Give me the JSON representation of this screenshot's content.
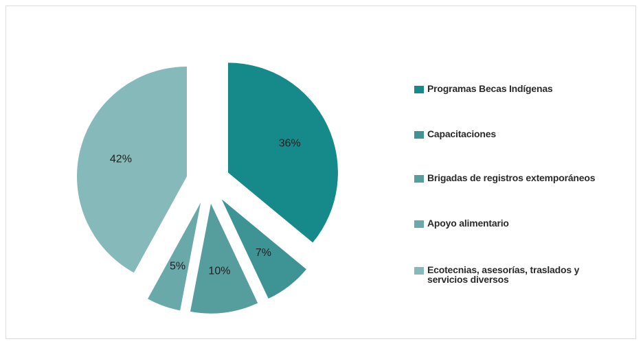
{
  "chart_data": {
    "type": "pie",
    "categories": [
      "Programas Becas Indígenas",
      "Capacitaciones",
      "Brigadas de registros extemporáneos",
      "Apoyo alimentario",
      "Ecotecnias, asesorías, traslados y servicios diversos"
    ],
    "values": [
      36,
      7,
      10,
      5,
      42
    ],
    "value_labels": [
      "36%",
      "7%",
      "10%",
      "5%",
      "42%"
    ],
    "colors": [
      "#168a8a",
      "#3e9494",
      "#569e9e",
      "#6aa9a9",
      "#86b9b9"
    ],
    "exploded": true,
    "legend": "right"
  }
}
